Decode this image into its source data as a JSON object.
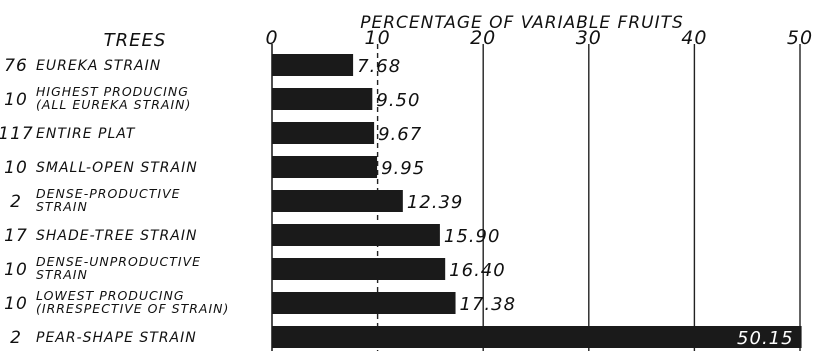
{
  "chart_data": {
    "type": "bar",
    "orientation": "horizontal",
    "title": "PERCENTAGE OF VARIABLE FRUITS",
    "row_header": "TREES",
    "xlim": [
      0,
      50
    ],
    "x_ticks": [
      "0",
      "10",
      "20",
      "30",
      "40",
      "50"
    ],
    "grid": true,
    "bar_color": "#1a1a1a",
    "rows": [
      {
        "count": "76",
        "label": [
          "EUREKA STRAIN"
        ],
        "value": 7.68,
        "value_label": "7.68"
      },
      {
        "count": "10",
        "label": [
          "HIGHEST PRODUCING",
          "(ALL EUREKA STRAIN)"
        ],
        "value": 9.5,
        "value_label": "9.50"
      },
      {
        "count": "117",
        "label": [
          "ENTIRE PLAT"
        ],
        "value": 9.67,
        "value_label": "9.67"
      },
      {
        "count": "10",
        "label": [
          "SMALL-OPEN STRAIN"
        ],
        "value": 9.95,
        "value_label": "9.95"
      },
      {
        "count": "2",
        "label": [
          "DENSE-PRODUCTIVE",
          "STRAIN"
        ],
        "value": 12.39,
        "value_label": "12.39"
      },
      {
        "count": "17",
        "label": [
          "SHADE-TREE STRAIN"
        ],
        "value": 15.9,
        "value_label": "15.90"
      },
      {
        "count": "10",
        "label": [
          "DENSE-UNPRODUCTIVE",
          "STRAIN"
        ],
        "value": 16.4,
        "value_label": "16.40"
      },
      {
        "count": "10",
        "label": [
          "LOWEST PRODUCING",
          "(IRRESPECTIVE OF STRAIN)"
        ],
        "value": 17.38,
        "value_label": "17.38"
      },
      {
        "count": "2",
        "label": [
          "PEAR-SHAPE STRAIN"
        ],
        "value": 50.15,
        "value_label": "50.15"
      }
    ]
  }
}
